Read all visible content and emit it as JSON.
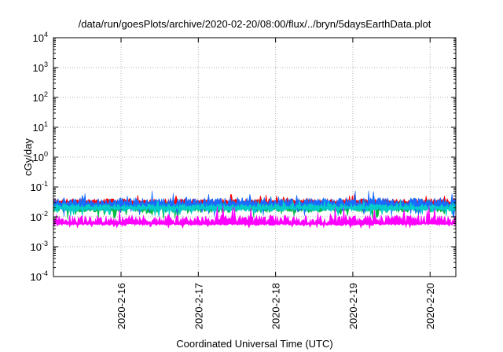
{
  "chart_data": {
    "type": "area",
    "title": "/data/run/goesPlots/archive/2020-02-20/08:00/flux/../bryn/5daysEarthData.plot",
    "xlabel": "Coordinated Universal Time (UTC)",
    "ylabel": "cGy/day",
    "yscale": "log",
    "ylim": [
      0.0001,
      10000
    ],
    "y_ticks": [
      {
        "base": "10",
        "exp": "-4",
        "value": 0.0001
      },
      {
        "base": "10",
        "exp": "-3",
        "value": 0.001
      },
      {
        "base": "10",
        "exp": "-2",
        "value": 0.01
      },
      {
        "base": "10",
        "exp": "-1",
        "value": 0.1
      },
      {
        "base": "10",
        "exp": "0",
        "value": 1
      },
      {
        "base": "10",
        "exp": "1",
        "value": 10
      },
      {
        "base": "10",
        "exp": "2",
        "value": 100
      },
      {
        "base": "10",
        "exp": "3",
        "value": 1000
      },
      {
        "base": "10",
        "exp": "4",
        "value": 10000
      }
    ],
    "xlim": [
      "2020-02-15 03:00",
      "2020-02-20 08:00"
    ],
    "x_ticks": [
      "2020-2-16",
      "2020-2-17",
      "2020-2-18",
      "2020-2-19",
      "2020-2-20"
    ],
    "grid": true,
    "series": [
      {
        "color": "#ff0000",
        "typical_value": 0.03,
        "range": [
          0.02,
          0.06
        ]
      },
      {
        "color": "#00bb44",
        "typical_value": 0.02,
        "range": [
          0.008,
          0.04
        ]
      },
      {
        "color": "#1a6bff",
        "typical_value": 0.025,
        "range": [
          0.01,
          0.09
        ]
      },
      {
        "color": "#00cccc",
        "typical_value": 0.02,
        "range": [
          0.01,
          0.04
        ]
      },
      {
        "color": "#ff00ff",
        "typical_value": 0.006,
        "range": [
          0.004,
          0.025
        ]
      }
    ]
  }
}
